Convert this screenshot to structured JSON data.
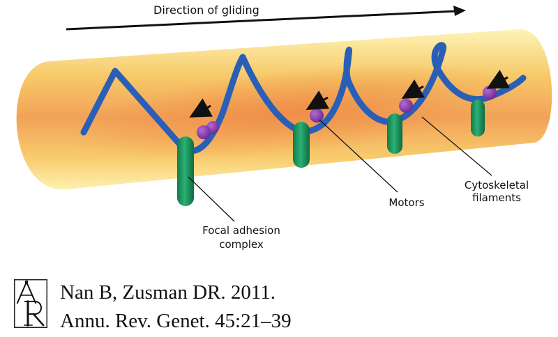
{
  "diagram": {
    "title": "Direction of gliding",
    "labels": {
      "motors": "Motors",
      "cytoskeletal_line1": "Cytoskeletal",
      "cytoskeletal_line2": "filaments",
      "focal_line1": "Focal adhesion",
      "focal_line2": "complex"
    },
    "colors": {
      "cell_outer": "#f9e87a",
      "cell_inner": "#f2994a",
      "filament": "#2a5fb8",
      "focal_adhesion": "#1f9a62",
      "motor": "#8a3fb0",
      "arrow": "#111111"
    }
  },
  "citation": {
    "logo": "AR",
    "line1": "Nan B, Zusman DR. 2011.",
    "line2": "Annu. Rev. Genet. 45:21–39"
  }
}
